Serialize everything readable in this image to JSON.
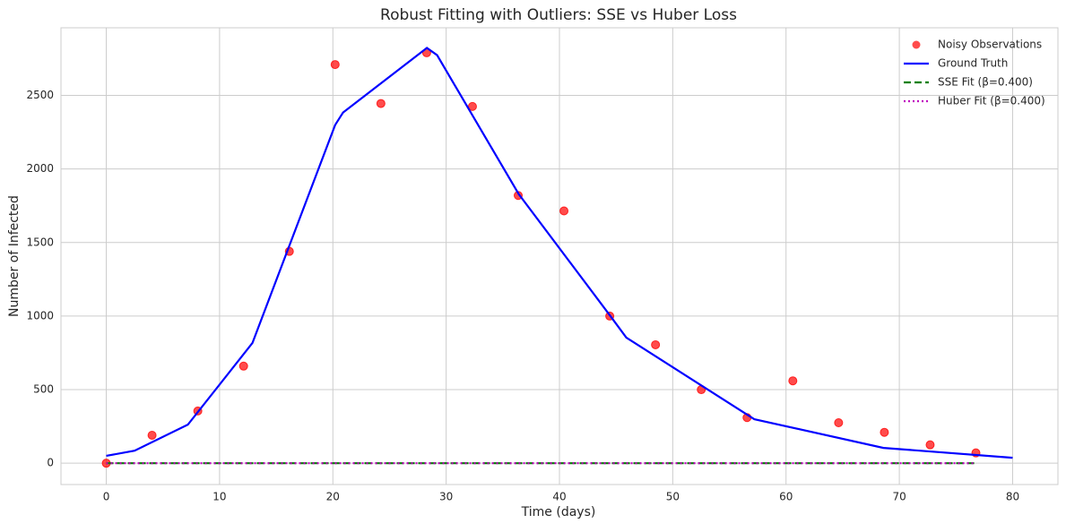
{
  "chart_data": {
    "type": "line",
    "title": "Robust Fitting with Outliers: SSE vs Huber Loss",
    "x_label": "Time (days)",
    "y_label": "Number of Infected",
    "xlim": [
      -4,
      84
    ],
    "ylim": [
      -145,
      2960
    ],
    "xticks": [
      0,
      10,
      20,
      30,
      40,
      50,
      60,
      70,
      80
    ],
    "yticks": [
      0,
      500,
      1000,
      1500,
      2000,
      2500
    ],
    "grid": true,
    "legend": "upper right",
    "series": [
      {
        "name": "Noisy Observations",
        "color": "#ff0000",
        "style": "markers",
        "x": [
          0,
          4.04,
          8.08,
          12.12,
          16.16,
          20.2,
          24.24,
          28.28,
          32.32,
          36.36,
          40.4,
          44.44,
          48.48,
          52.52,
          56.56,
          60.6,
          64.64,
          68.68,
          72.72,
          76.76
        ],
        "values": [
          0,
          190,
          355,
          660,
          1440,
          2710,
          2445,
          2790,
          2425,
          1820,
          1715,
          1000,
          805,
          500,
          310,
          560,
          275,
          210,
          125,
          70
        ]
      },
      {
        "name": "Ground Truth",
        "color": "#0000ff",
        "style": "solid",
        "x": [
          0,
          2.5,
          7.2,
          12.9,
          20.2,
          20.9,
          28.3,
          29.2,
          36.4,
          44.5,
          45.9,
          57.2,
          68.6,
          80
        ],
        "values": [
          50,
          85,
          262,
          817,
          2299,
          2384,
          2823,
          2774,
          1830,
          1000,
          854,
          299,
          104,
          37
        ]
      },
      {
        "name": "SSE Fit (β=0.400)",
        "color": "#008000",
        "style": "dashed",
        "x": [
          0,
          76.76
        ],
        "values": [
          0,
          0
        ]
      },
      {
        "name": "Huber Fit (β=0.400)",
        "color": "#bf00bf",
        "style": "dotted",
        "x": [
          0,
          76.76
        ],
        "values": [
          0,
          0
        ]
      }
    ]
  }
}
